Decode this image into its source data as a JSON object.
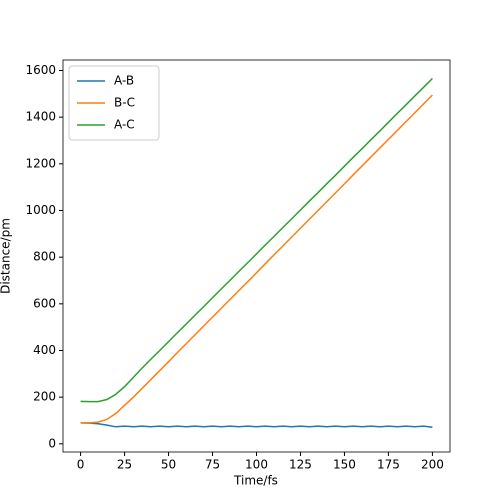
{
  "chart_data": {
    "type": "line",
    "x_label": "Time/fs",
    "y_label": "Distance/pm",
    "x": [
      0,
      5,
      10,
      15,
      20,
      25,
      30,
      35,
      40,
      45,
      50,
      55,
      60,
      65,
      70,
      75,
      80,
      85,
      90,
      95,
      100,
      105,
      110,
      115,
      120,
      125,
      130,
      135,
      140,
      145,
      150,
      155,
      160,
      165,
      170,
      175,
      180,
      185,
      190,
      195,
      200
    ],
    "series": [
      {
        "name": "A-B",
        "color": "#1f77b4",
        "values": [
          90,
          89,
          86,
          80,
          73,
          76,
          73,
          76,
          73,
          76,
          73,
          76,
          73,
          76,
          73,
          76,
          73,
          76,
          73,
          76,
          73,
          76,
          73,
          76,
          73,
          76,
          73,
          76,
          73,
          76,
          73,
          76,
          73,
          76,
          73,
          76,
          73,
          76,
          73,
          76,
          71
        ]
      },
      {
        "name": "B-C",
        "color": "#ff7f0e",
        "values": [
          90,
          90,
          93,
          105,
          130,
          165,
          200,
          238,
          276,
          314,
          352,
          391,
          429,
          467,
          505,
          543,
          581,
          619,
          657,
          695,
          733,
          772,
          810,
          848,
          886,
          924,
          962,
          1000,
          1038,
          1076,
          1114,
          1153,
          1191,
          1229,
          1267,
          1305,
          1343,
          1381,
          1419,
          1457,
          1495
        ]
      },
      {
        "name": "A-C",
        "color": "#2ca02c",
        "values": [
          182,
          181,
          181,
          190,
          212,
          245,
          285,
          325,
          363,
          400,
          438,
          476,
          513,
          551,
          588,
          626,
          664,
          701,
          739,
          776,
          814,
          852,
          889,
          927,
          964,
          1002,
          1040,
          1077,
          1115,
          1152,
          1190,
          1228,
          1265,
          1303,
          1340,
          1378,
          1416,
          1453,
          1491,
          1528,
          1566
        ]
      }
    ],
    "xlim": [
      -10,
      210
    ],
    "ylim": [
      -35,
      1645
    ],
    "xticks": [
      0,
      25,
      50,
      75,
      100,
      125,
      150,
      175,
      200
    ],
    "yticks": [
      0,
      200,
      400,
      600,
      800,
      1000,
      1200,
      1400,
      1600
    ],
    "legend": "upper left"
  }
}
